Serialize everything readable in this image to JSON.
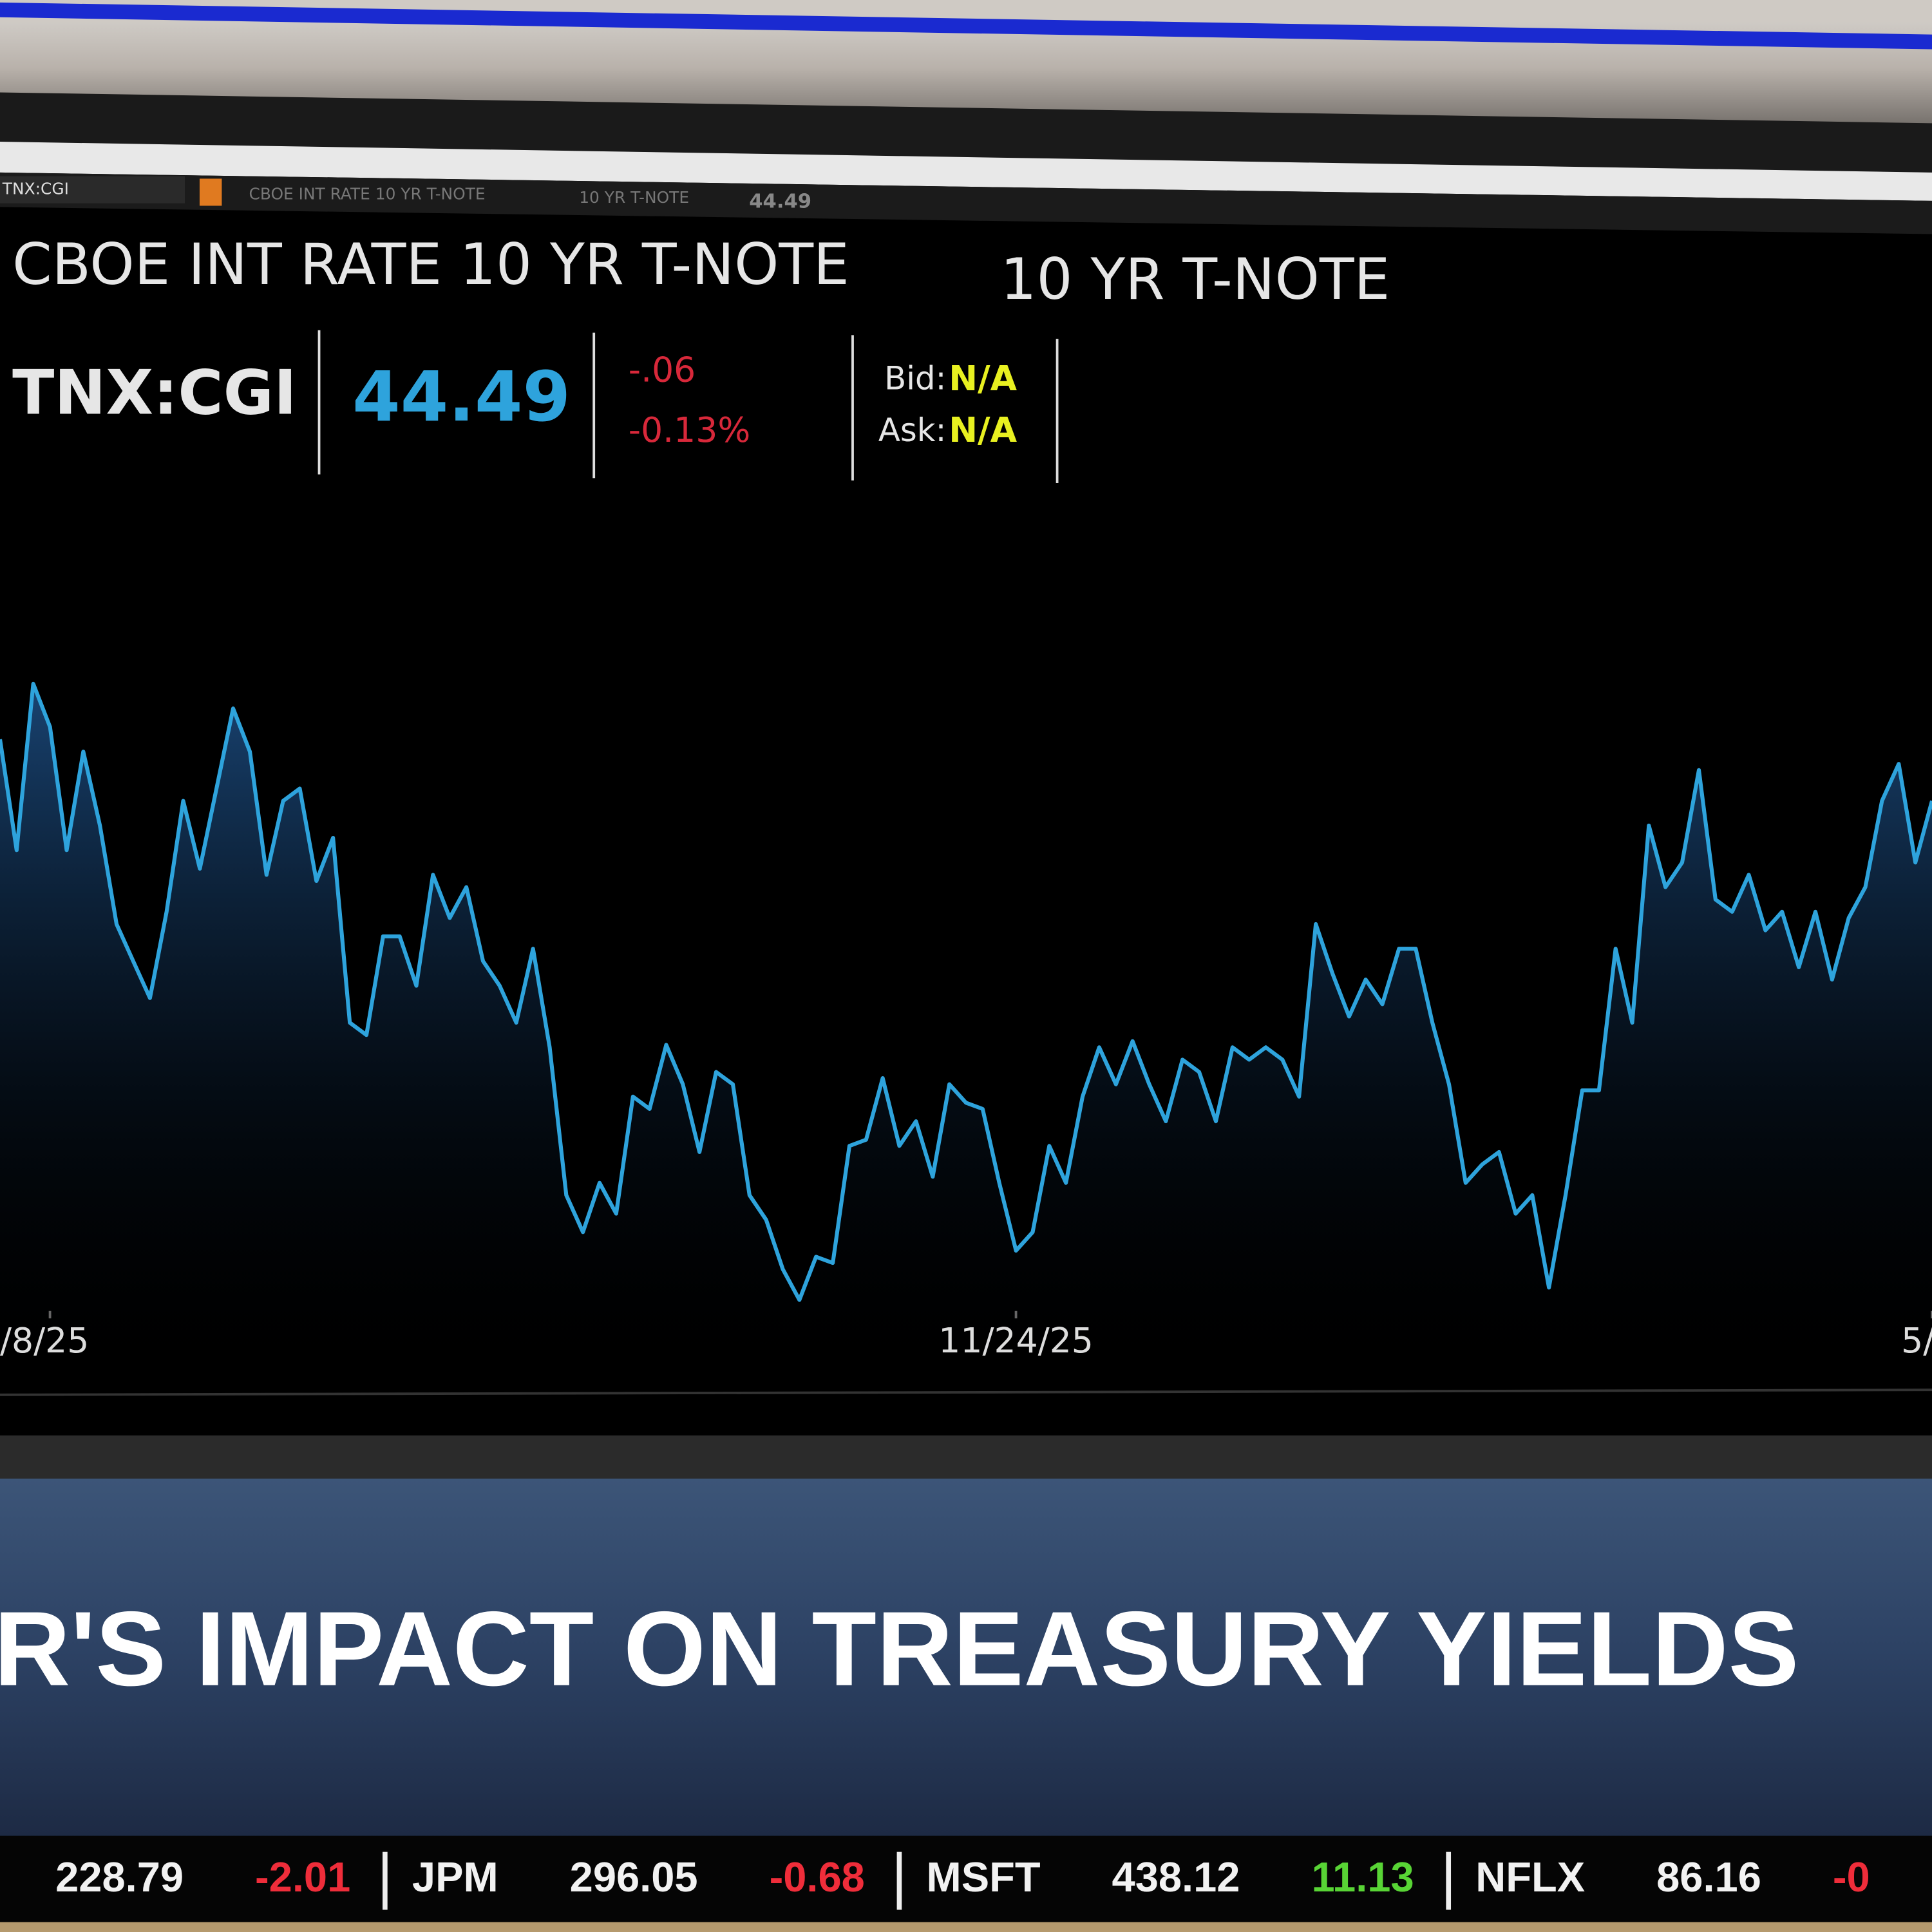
{
  "toolbar": {
    "symbol": "TNX:CGI",
    "name": "CBOE INT RATE 10 YR T-NOTE",
    "short": "10 YR T-NOTE",
    "price": "44.49"
  },
  "quote": {
    "title": "CBOE INT RATE 10 YR T-NOTE",
    "subtitle": "10 YR T-NOTE",
    "symbol": "TNX:CGI",
    "price": "44.49",
    "change": "-.06",
    "change_pct": "-0.13%",
    "bid_label": "Bid:",
    "bid": "N/A",
    "ask_label": "Ask:",
    "ask": "N/A"
  },
  "chart_data": {
    "type": "line",
    "color": "#2ea3dc",
    "categories": [
      null,
      null,
      null,
      "/8/25",
      null,
      null,
      null,
      null,
      null,
      null,
      null,
      null,
      null,
      null,
      null,
      null,
      null,
      null,
      null,
      null,
      null,
      null,
      null,
      null,
      null,
      null,
      null,
      null,
      null,
      null,
      null,
      null,
      null,
      null,
      null,
      null,
      null,
      null,
      null,
      null,
      null,
      null,
      null,
      null,
      null,
      null,
      null,
      null,
      null,
      null,
      null,
      null,
      null,
      null,
      null,
      null,
      null,
      null,
      null,
      null,
      null,
      "11/24/25",
      null,
      null,
      null,
      null,
      null,
      null,
      null,
      null,
      null,
      null,
      null,
      null,
      null,
      null,
      null,
      null,
      null,
      null,
      null,
      null,
      null,
      null,
      null,
      null,
      null,
      null,
      null,
      null,
      null,
      null,
      null,
      null,
      null,
      null,
      null,
      null,
      null,
      null,
      null,
      null,
      null,
      null,
      null,
      null,
      null,
      null,
      null,
      null,
      null,
      null,
      null,
      null,
      null,
      null,
      "5/"
    ],
    "values": [
      44.55,
      43.65,
      45.0,
      44.65,
      43.65,
      44.45,
      43.85,
      43.05,
      42.75,
      42.45,
      43.15,
      44.05,
      43.5,
      44.15,
      44.8,
      44.45,
      43.45,
      44.05,
      44.15,
      43.4,
      43.75,
      42.25,
      42.15,
      42.95,
      42.95,
      42.55,
      43.45,
      43.1,
      43.35,
      42.75,
      42.55,
      42.25,
      42.85,
      42.05,
      40.85,
      40.55,
      40.95,
      40.7,
      41.65,
      41.55,
      42.07,
      41.75,
      41.2,
      41.85,
      41.75,
      40.85,
      40.65,
      40.25,
      40.0,
      40.35,
      40.3,
      41.25,
      41.3,
      41.8,
      41.25,
      41.45,
      41.0,
      41.75,
      41.6,
      41.55,
      40.95,
      40.4,
      40.55,
      41.25,
      40.95,
      41.65,
      42.05,
      41.75,
      42.1,
      41.75,
      41.45,
      41.95,
      41.85,
      41.45,
      42.05,
      41.95,
      42.05,
      41.95,
      41.65,
      43.05,
      42.65,
      42.3,
      42.6,
      42.4,
      42.85,
      42.85,
      42.25,
      41.75,
      40.95,
      41.1,
      41.2,
      40.7,
      40.85,
      40.1,
      40.85,
      41.7,
      41.7,
      42.85,
      42.25,
      43.85,
      43.35,
      43.55,
      44.3,
      43.25,
      43.15,
      43.45,
      43.0,
      43.15,
      42.7,
      43.15,
      42.6,
      43.1,
      43.35,
      44.05,
      44.35,
      43.55,
      44.05
    ]
  },
  "banner": {
    "headline": "R'S IMPACT ON TREASURY YIELDS"
  },
  "ticker": [
    {
      "text": "228.79",
      "kind": "num"
    },
    {
      "text": "-2.01",
      "kind": "neg"
    },
    {
      "text": "JPM",
      "kind": "sym"
    },
    {
      "text": "296.05",
      "kind": "num"
    },
    {
      "text": "-0.68",
      "kind": "neg"
    },
    {
      "text": "MSFT",
      "kind": "sym"
    },
    {
      "text": "438.12",
      "kind": "num"
    },
    {
      "text": "11.13",
      "kind": "pos"
    },
    {
      "text": "NFLX",
      "kind": "sym"
    },
    {
      "text": "86.16",
      "kind": "num"
    },
    {
      "text": "-0",
      "kind": "neg"
    }
  ]
}
